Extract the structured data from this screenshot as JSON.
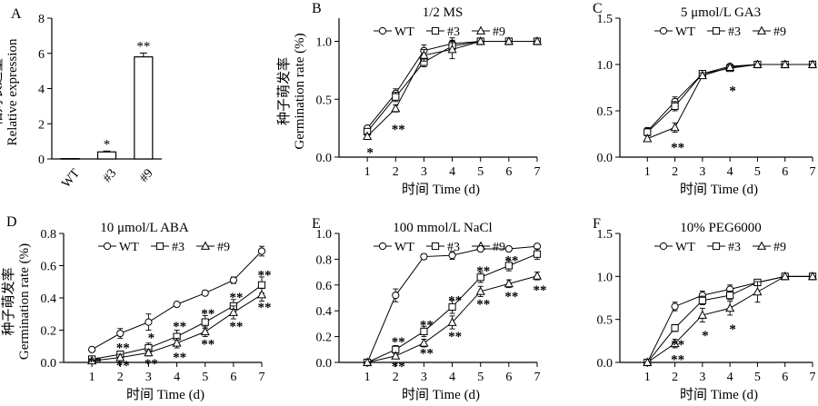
{
  "chart_data": [
    {
      "id": "A",
      "type": "bar",
      "panel_label": "A",
      "title": "",
      "ylabel_cn": "相对表达量",
      "ylabel_en": "Relative expression",
      "xlabel": "",
      "categories": [
        "WT",
        "#3",
        "#9"
      ],
      "values": [
        0.02,
        0.4,
        5.8
      ],
      "errors": [
        0.0,
        0.05,
        0.22
      ],
      "significance": [
        "",
        "*",
        "**"
      ],
      "ylim": [
        0,
        8
      ],
      "yticks": [
        0,
        2,
        4,
        6,
        8
      ]
    },
    {
      "id": "B",
      "type": "line",
      "panel_label": "B",
      "title": "1/2 MS",
      "xlabel": "时间 Time (d)",
      "ylabel_cn": "种子萌发率",
      "ylabel_en": "Germination rate (%)",
      "x": [
        1,
        2,
        3,
        4,
        5,
        6,
        7
      ],
      "xlim": [
        0,
        7
      ],
      "xticks": [
        1,
        2,
        3,
        4,
        5,
        6,
        7
      ],
      "ylim": [
        0,
        1.2
      ],
      "yticks": [
        "0.0",
        "0.5",
        "1.0"
      ],
      "legend": [
        "WT",
        "#3",
        "#9"
      ],
      "series": [
        {
          "name": "WT",
          "marker": "circle",
          "values": [
            0.25,
            0.55,
            0.92,
            0.98,
            1.0,
            1.0,
            1.0
          ],
          "errors": [
            0.02,
            0.04,
            0.05,
            0.05,
            0.01,
            0.01,
            0.01
          ]
        },
        {
          "name": "#3",
          "marker": "square",
          "values": [
            0.22,
            0.52,
            0.82,
            0.96,
            1.0,
            1.0,
            1.0
          ],
          "errors": [
            0.02,
            0.04,
            0.04,
            0.04,
            0.01,
            0.01,
            0.01
          ]
        },
        {
          "name": "#9",
          "marker": "triangle",
          "values": [
            0.18,
            0.42,
            0.88,
            0.93,
            1.0,
            1.0,
            1.0
          ],
          "errors": [
            0.02,
            0.03,
            0.05,
            0.08,
            0.01,
            0.01,
            0.01
          ]
        }
      ],
      "annotations": [
        {
          "x": 1,
          "y": 0.05,
          "text": "*"
        },
        {
          "x": 2,
          "y": 0.25,
          "text": "**"
        }
      ]
    },
    {
      "id": "C",
      "type": "line",
      "panel_label": "C",
      "title": "5 μmol/L GA3",
      "xlabel": "时间 Time (d)",
      "ylabel_cn": "",
      "ylabel_en": "",
      "x": [
        1,
        2,
        3,
        4,
        5,
        6,
        7
      ],
      "xlim": [
        0,
        7
      ],
      "xticks": [
        1,
        2,
        3,
        4,
        5,
        6,
        7
      ],
      "ylim": [
        0,
        1.5
      ],
      "yticks": [
        "0.0",
        "0.5",
        "1.0",
        "1.5"
      ],
      "legend": [
        "WT",
        "#3",
        "#9"
      ],
      "series": [
        {
          "name": "WT",
          "marker": "circle",
          "values": [
            0.28,
            0.6,
            0.9,
            0.98,
            1.0,
            1.0,
            1.0
          ],
          "errors": [
            0.04,
            0.05,
            0.03,
            0.02,
            0.01,
            0.01,
            0.01
          ]
        },
        {
          "name": "#3",
          "marker": "square",
          "values": [
            0.27,
            0.55,
            0.9,
            0.96,
            1.0,
            1.0,
            1.0
          ],
          "errors": [
            0.04,
            0.05,
            0.03,
            0.02,
            0.01,
            0.01,
            0.01
          ]
        },
        {
          "name": "#9",
          "marker": "triangle",
          "values": [
            0.2,
            0.32,
            0.88,
            0.97,
            1.0,
            1.0,
            1.0
          ],
          "errors": [
            0.03,
            0.05,
            0.03,
            0.02,
            0.01,
            0.01,
            0.01
          ]
        }
      ],
      "annotations": [
        {
          "x": 2,
          "y": 0.12,
          "text": "**"
        },
        {
          "x": 4,
          "y": 0.73,
          "text": "*"
        }
      ]
    },
    {
      "id": "D",
      "type": "line",
      "panel_label": "D",
      "title": "10 μmol/L ABA",
      "xlabel": "时间 Time (d)",
      "ylabel_cn": "种子萌发率",
      "ylabel_en": "Germination rate (%)",
      "x": [
        1,
        2,
        3,
        4,
        5,
        6,
        7
      ],
      "xlim": [
        0,
        7
      ],
      "xticks": [
        1,
        2,
        3,
        4,
        5,
        6,
        7
      ],
      "ylim": [
        0,
        0.8
      ],
      "yticks": [
        "0.0",
        "0.2",
        "0.4",
        "0.6",
        "0.8"
      ],
      "legend": [
        "WT",
        "#3",
        "#9"
      ],
      "series": [
        {
          "name": "WT",
          "marker": "circle",
          "values": [
            0.08,
            0.18,
            0.25,
            0.36,
            0.43,
            0.51,
            0.69
          ],
          "errors": [
            0.01,
            0.03,
            0.05,
            0.01,
            0.01,
            0.02,
            0.03
          ]
        },
        {
          "name": "#3",
          "marker": "square",
          "values": [
            0.02,
            0.05,
            0.09,
            0.16,
            0.25,
            0.35,
            0.48
          ],
          "errors": [
            0.01,
            0.02,
            0.03,
            0.04,
            0.04,
            0.04,
            0.05
          ]
        },
        {
          "name": "#9",
          "marker": "triangle",
          "values": [
            0.01,
            0.03,
            0.06,
            0.12,
            0.19,
            0.31,
            0.42
          ],
          "errors": [
            0.01,
            0.02,
            0.02,
            0.03,
            0.03,
            0.04,
            0.04
          ]
        }
      ],
      "annotations": [
        {
          "x": 1,
          "y": 0.01,
          "text": "**"
        },
        {
          "x": 2,
          "y": 0.1,
          "text": "**"
        },
        {
          "x": 2,
          "y": -0.01,
          "text": "**"
        },
        {
          "x": 3,
          "y": 0.16,
          "text": "*"
        },
        {
          "x": 3,
          "y": 0.0,
          "text": "**"
        },
        {
          "x": 4,
          "y": 0.23,
          "text": "**"
        },
        {
          "x": 4,
          "y": 0.04,
          "text": "**"
        },
        {
          "x": 5,
          "y": 0.31,
          "text": "**"
        },
        {
          "x": 5,
          "y": 0.12,
          "text": "**"
        },
        {
          "x": 6,
          "y": 0.41,
          "text": "**"
        },
        {
          "x": 6,
          "y": 0.23,
          "text": "**"
        },
        {
          "x": 7,
          "y": 0.55,
          "text": "**"
        },
        {
          "x": 7,
          "y": 0.35,
          "text": "**"
        }
      ]
    },
    {
      "id": "E",
      "type": "line",
      "panel_label": "E",
      "title": "100 mmol/L NaCl",
      "xlabel": "时间 Time (d)",
      "ylabel_cn": "",
      "ylabel_en": "",
      "x": [
        1,
        2,
        3,
        4,
        5,
        6,
        7
      ],
      "xlim": [
        0,
        7
      ],
      "xticks": [
        1,
        2,
        3,
        4,
        5,
        6,
        7
      ],
      "ylim": [
        0,
        1.0
      ],
      "yticks": [
        "0.0",
        "0.2",
        "0.4",
        "0.6",
        "0.8",
        "1.0"
      ],
      "legend": [
        "WT",
        "#3",
        "#9"
      ],
      "series": [
        {
          "name": "WT",
          "marker": "circle",
          "values": [
            0.0,
            0.52,
            0.82,
            0.83,
            0.88,
            0.88,
            0.9
          ],
          "errors": [
            0.01,
            0.05,
            0.02,
            0.03,
            0.01,
            0.01,
            0.01
          ]
        },
        {
          "name": "#3",
          "marker": "square",
          "values": [
            0.0,
            0.1,
            0.24,
            0.43,
            0.66,
            0.75,
            0.84
          ],
          "errors": [
            0.01,
            0.03,
            0.04,
            0.05,
            0.04,
            0.04,
            0.04
          ]
        },
        {
          "name": "#9",
          "marker": "triangle",
          "values": [
            0.0,
            0.05,
            0.15,
            0.31,
            0.55,
            0.61,
            0.67
          ],
          "errors": [
            0.01,
            0.02,
            0.03,
            0.05,
            0.04,
            0.03,
            0.03
          ]
        }
      ],
      "annotations": [
        {
          "x": 2,
          "y": 0.17,
          "text": "**"
        },
        {
          "x": 2,
          "y": -0.02,
          "text": "**"
        },
        {
          "x": 3,
          "y": 0.3,
          "text": "**"
        },
        {
          "x": 3,
          "y": 0.08,
          "text": "**"
        },
        {
          "x": 4,
          "y": 0.49,
          "text": "**"
        },
        {
          "x": 4,
          "y": 0.21,
          "text": "**"
        },
        {
          "x": 5,
          "y": 0.72,
          "text": "**"
        },
        {
          "x": 5,
          "y": 0.46,
          "text": "**"
        },
        {
          "x": 6,
          "y": 0.8,
          "text": "**"
        },
        {
          "x": 6,
          "y": 0.52,
          "text": "**"
        },
        {
          "x": 7,
          "y": 0.57,
          "text": "**"
        }
      ]
    },
    {
      "id": "F",
      "type": "line",
      "panel_label": "F",
      "title": "10% PEG6000",
      "xlabel": "时间 Time (d)",
      "ylabel_cn": "",
      "ylabel_en": "",
      "x": [
        1,
        2,
        3,
        4,
        5,
        6,
        7
      ],
      "xlim": [
        0,
        7
      ],
      "xticks": [
        1,
        2,
        3,
        4,
        5,
        6,
        7
      ],
      "ylim": [
        0,
        1.5
      ],
      "yticks": [
        "0.0",
        "0.5",
        "1.0",
        "1.5"
      ],
      "legend": [
        "WT",
        "#3",
        "#9"
      ],
      "series": [
        {
          "name": "WT",
          "marker": "circle",
          "values": [
            0.0,
            0.65,
            0.78,
            0.85,
            0.93,
            1.0,
            1.0
          ],
          "errors": [
            0.01,
            0.05,
            0.05,
            0.05,
            0.02,
            0.01,
            0.01
          ]
        },
        {
          "name": "#3",
          "marker": "square",
          "values": [
            0.0,
            0.4,
            0.72,
            0.78,
            0.93,
            1.0,
            1.0
          ],
          "errors": [
            0.01,
            0.04,
            0.05,
            0.05,
            0.02,
            0.01,
            0.01
          ]
        },
        {
          "name": "#9",
          "marker": "triangle",
          "values": [
            0.0,
            0.22,
            0.55,
            0.63,
            0.82,
            1.0,
            1.0
          ],
          "errors": [
            0.01,
            0.05,
            0.08,
            0.08,
            0.12,
            0.01,
            0.01
          ]
        }
      ],
      "annotations": [
        {
          "x": 2,
          "y": 0.22,
          "text": "**"
        },
        {
          "x": 2,
          "y": 0.05,
          "text": "**"
        },
        {
          "x": 3,
          "y": 0.33,
          "text": "*"
        },
        {
          "x": 4,
          "y": 0.4,
          "text": "*"
        }
      ]
    }
  ]
}
